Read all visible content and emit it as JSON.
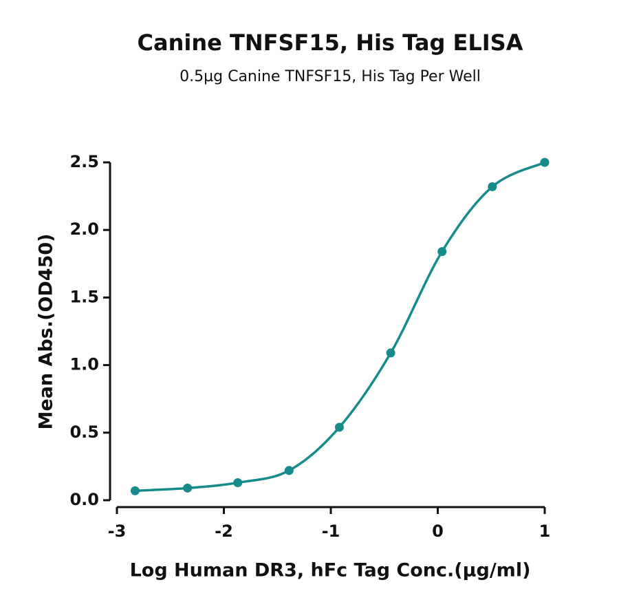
{
  "chart_data": {
    "type": "line",
    "title": "Canine TNFSF15, His Tag ELISA",
    "subtitle": "0.5µg Canine TNFSF15, His Tag Per Well",
    "x_label": "Log Human DR3, hFc Tag Conc.(µg/ml)",
    "y_label": "Mean Abs.(OD450)",
    "x": [
      -2.83,
      -2.34,
      -1.87,
      -1.39,
      -0.92,
      -0.44,
      0.04,
      0.51,
      1.0
    ],
    "series": [
      {
        "color": "#178b8b",
        "values": [
          0.07,
          0.09,
          0.13,
          0.22,
          0.54,
          1.09,
          1.84,
          2.32,
          2.5
        ]
      }
    ],
    "markers": true,
    "smooth": true,
    "xlim": [
      -3,
      1
    ],
    "xticks": [
      -3,
      -2,
      -1,
      0,
      1
    ],
    "ylim": [
      0,
      2.5
    ],
    "yticks": [
      {
        "value": 0,
        "label": "0.0"
      },
      0.5,
      {
        "value": 1,
        "label": "1.0"
      },
      1.5,
      {
        "value": 2,
        "label": "2.0"
      },
      2.5
    ],
    "grid": false
  }
}
